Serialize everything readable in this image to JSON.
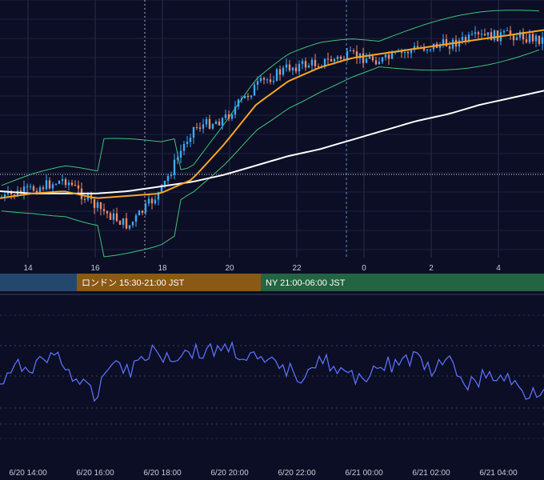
{
  "chart_data": [
    {
      "type": "candlestick",
      "x_ticks": [
        "14",
        "16",
        "18",
        "20",
        "22",
        "0",
        "2",
        "4"
      ],
      "colors": {
        "up": "#3fa9f5",
        "down": "#ef8a6a",
        "ma_short": "#f5a623",
        "ma_long": "#ffffff",
        "bollinger": "#3ec27a"
      },
      "series": [
        {
          "name": "ma_short",
          "values": [
            0.22,
            0.24,
            0.25,
            0.22,
            0.23,
            0.24,
            0.3,
            0.45,
            0.62,
            0.72,
            0.78,
            0.82,
            0.84,
            0.86,
            0.88,
            0.9,
            0.92,
            0.94
          ]
        },
        {
          "name": "ma_long",
          "values": [
            0.25,
            0.24,
            0.24,
            0.24,
            0.25,
            0.27,
            0.29,
            0.32,
            0.36,
            0.4,
            0.43,
            0.47,
            0.51,
            0.55,
            0.58,
            0.62,
            0.65,
            0.68
          ]
        },
        {
          "name": "close",
          "values": [
            0.22,
            0.26,
            0.3,
            0.18,
            0.1,
            0.25,
            0.52,
            0.56,
            0.7,
            0.78,
            0.8,
            0.83,
            0.81,
            0.86,
            0.88,
            0.91,
            0.92,
            0.9
          ]
        }
      ]
    },
    {
      "type": "line",
      "x_ticks": [
        "6/20 14:00",
        "6/20 16:00",
        "6/20 18:00",
        "6/20 20:00",
        "6/20 22:00",
        "6/21 00:00",
        "6/21 02:00",
        "6/21 04:00"
      ],
      "series": [
        {
          "name": "osc",
          "values": [
            0.25,
            0.55,
            0.6,
            0.78,
            0.35,
            0.05,
            0.7,
            0.5,
            0.85,
            0.7,
            0.82,
            0.78,
            0.9,
            0.75,
            0.6,
            0.55,
            0.4,
            0.72,
            0.5,
            0.3,
            0.55,
            0.6,
            0.7,
            0.5,
            0.6,
            0.25,
            0.4,
            0.35,
            0.1,
            0.2
          ]
        }
      ]
    }
  ],
  "sessions": [
    {
      "label": "",
      "color": "#24476e"
    },
    {
      "label": "ロンドン 15:30-21:00 JST",
      "color": "#8a5914"
    },
    {
      "label": "NY 21:00-06:00 JST",
      "color": "#236540"
    }
  ]
}
